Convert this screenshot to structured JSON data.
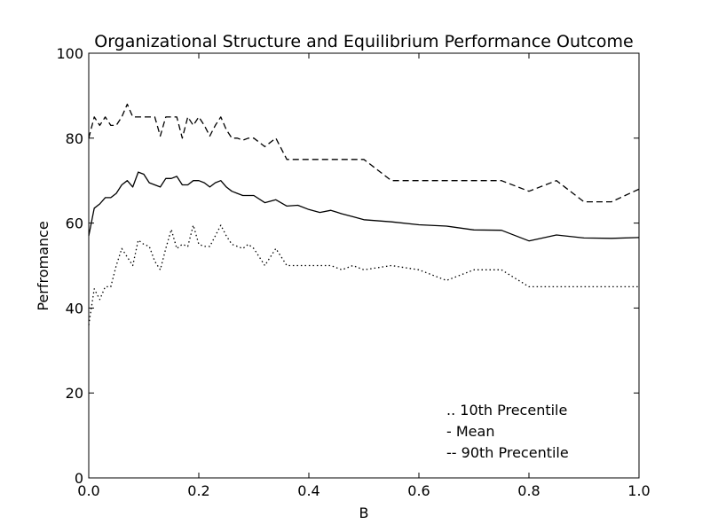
{
  "chart_data": {
    "type": "line",
    "title": "Organizational Structure and Equilibrium Performance Outcome",
    "xlabel": "B",
    "ylabel": "Perfromance",
    "xlim": [
      0.0,
      1.0
    ],
    "ylim": [
      0,
      100
    ],
    "x_ticks": [
      "0.0",
      "0.2",
      "0.4",
      "0.6",
      "0.8",
      "1.0"
    ],
    "y_ticks": [
      "0",
      "20",
      "40",
      "60",
      "80",
      "100"
    ],
    "grid": false,
    "legend_position": "lower-right",
    "legend": [
      ".. 10th Precentile",
      "- Mean",
      "-- 90th Precentile"
    ],
    "series": [
      {
        "name": "10th Precentile",
        "style": "dotted",
        "color": "#000000",
        "x": [
          0.0,
          0.01,
          0.02,
          0.03,
          0.04,
          0.05,
          0.06,
          0.07,
          0.08,
          0.09,
          0.1,
          0.11,
          0.12,
          0.13,
          0.14,
          0.15,
          0.16,
          0.17,
          0.18,
          0.19,
          0.2,
          0.21,
          0.22,
          0.23,
          0.24,
          0.25,
          0.26,
          0.27,
          0.28,
          0.29,
          0.3,
          0.32,
          0.34,
          0.36,
          0.38,
          0.4,
          0.42,
          0.44,
          0.46,
          0.48,
          0.5,
          0.55,
          0.6,
          0.65,
          0.7,
          0.75,
          0.8,
          0.85,
          0.9,
          0.95,
          1.0
        ],
        "y": [
          36,
          44.5,
          42,
          45,
          45,
          50,
          54,
          52,
          50,
          56,
          55,
          54.5,
          51,
          49,
          54,
          58.5,
          54,
          55,
          54.5,
          59.5,
          55,
          54.5,
          54.5,
          57,
          59.5,
          57,
          55,
          54.5,
          54,
          55,
          54,
          50,
          54,
          50,
          50,
          50,
          50,
          50,
          49,
          50,
          49,
          50,
          49,
          46.5,
          49,
          49,
          45,
          45,
          45,
          45,
          45
        ]
      },
      {
        "name": "Mean",
        "style": "solid",
        "color": "#000000",
        "x": [
          0.0,
          0.01,
          0.02,
          0.03,
          0.04,
          0.05,
          0.06,
          0.07,
          0.08,
          0.09,
          0.1,
          0.11,
          0.12,
          0.13,
          0.14,
          0.15,
          0.16,
          0.17,
          0.18,
          0.19,
          0.2,
          0.21,
          0.22,
          0.23,
          0.24,
          0.25,
          0.26,
          0.27,
          0.28,
          0.29,
          0.3,
          0.32,
          0.34,
          0.36,
          0.38,
          0.4,
          0.42,
          0.44,
          0.46,
          0.48,
          0.5,
          0.55,
          0.6,
          0.65,
          0.7,
          0.75,
          0.8,
          0.85,
          0.9,
          0.95,
          1.0
        ],
        "y": [
          57,
          63.5,
          64.5,
          66,
          66,
          67,
          69,
          70,
          68.5,
          72,
          71.5,
          69.5,
          69,
          68.5,
          70.5,
          70.5,
          71,
          69,
          69,
          70,
          70,
          69.5,
          68.5,
          69.5,
          70,
          68.5,
          67.5,
          67,
          66.5,
          66.5,
          66.5,
          64.8,
          65.5,
          64,
          64.2,
          63.2,
          62.5,
          63,
          62.2,
          61.5,
          60.8,
          60.3,
          59.6,
          59.3,
          58.4,
          58.3,
          55.8,
          57.2,
          56.5,
          56.4,
          56.6
        ]
      },
      {
        "name": "90th Precentile",
        "style": "dashed",
        "color": "#000000",
        "x": [
          0.0,
          0.01,
          0.02,
          0.03,
          0.04,
          0.05,
          0.06,
          0.07,
          0.08,
          0.09,
          0.1,
          0.11,
          0.12,
          0.13,
          0.14,
          0.15,
          0.16,
          0.17,
          0.18,
          0.19,
          0.2,
          0.21,
          0.22,
          0.23,
          0.24,
          0.25,
          0.26,
          0.27,
          0.28,
          0.29,
          0.3,
          0.32,
          0.34,
          0.36,
          0.38,
          0.4,
          0.42,
          0.44,
          0.46,
          0.48,
          0.5,
          0.55,
          0.6,
          0.65,
          0.7,
          0.75,
          0.8,
          0.85,
          0.9,
          0.95,
          1.0
        ],
        "y": [
          80,
          85,
          83,
          85,
          83,
          83,
          85,
          88,
          85,
          85,
          85,
          85,
          85,
          80.5,
          85,
          85,
          85,
          80,
          85,
          83,
          85,
          83,
          80.5,
          83,
          85,
          82,
          80,
          80,
          79.5,
          80,
          80,
          78,
          80,
          75,
          75,
          75,
          75,
          75,
          75,
          75,
          75,
          70,
          70,
          70,
          70,
          70,
          67.5,
          70,
          65,
          65,
          68
        ]
      }
    ]
  }
}
